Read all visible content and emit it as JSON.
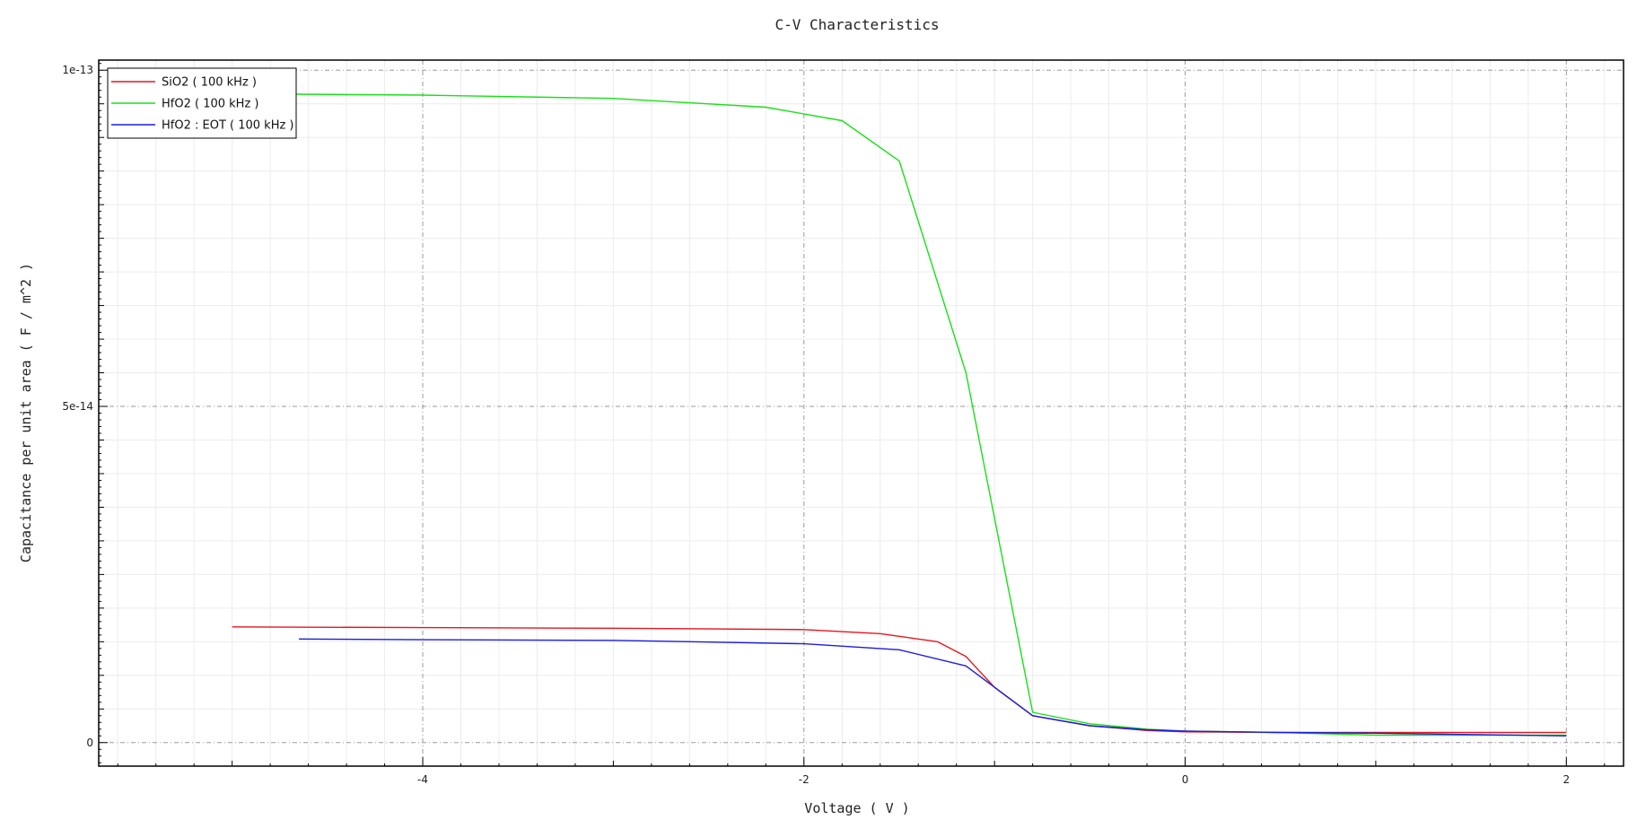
{
  "chart_data": {
    "type": "line",
    "title": "C-V Characteristics",
    "xlabel": "Voltage ( V )",
    "ylabel": "Capacitance per unit area  ( F / m^2 )",
    "xlim": [
      -5.7,
      2.3
    ],
    "ylim": [
      -3.5e-15,
      1.015e-13
    ],
    "x_ticks": [
      {
        "value": -4,
        "label": "-4"
      },
      {
        "value": -2,
        "label": "-2"
      },
      {
        "value": 0,
        "label": "0"
      },
      {
        "value": 2,
        "label": "2"
      }
    ],
    "y_ticks": [
      {
        "value": 0,
        "label": "0"
      },
      {
        "value": 5e-14,
        "label": "5e-14"
      },
      {
        "value": 1e-13,
        "label": "1e-13"
      }
    ],
    "grid": true,
    "legend_position": "top-left",
    "series": [
      {
        "name": "SiO2 ( 100 kHz )",
        "color": "#e8141e",
        "x": [
          -5.0,
          -4.0,
          -3.0,
          -2.0,
          -1.6,
          -1.3,
          -1.15,
          -1.0,
          -0.8,
          -0.5,
          -0.2,
          0.0,
          0.5,
          1.0,
          1.5,
          2.0
        ],
        "y": [
          1.72e-14,
          1.71e-14,
          1.7e-14,
          1.68e-14,
          1.62e-14,
          1.5e-14,
          1.28e-14,
          8.2e-15,
          4e-15,
          2.5e-15,
          1.8e-15,
          1.6e-15,
          1.5e-15,
          1.5e-15,
          1.5e-15,
          1.5e-15
        ]
      },
      {
        "name": "HfO2 ( 100 kHz )",
        "color": "#18e018",
        "x": [
          -5.0,
          -4.0,
          -3.0,
          -2.2,
          -1.8,
          -1.5,
          -1.15,
          -0.8,
          -0.5,
          -0.2,
          0.0,
          0.5,
          1.0,
          1.5,
          2.0
        ],
        "y": [
          9.65e-14,
          9.63e-14,
          9.58e-14,
          9.45e-14,
          9.25e-14,
          8.65e-14,
          5.5e-14,
          4.5e-15,
          2.8e-15,
          2e-15,
          1.7e-15,
          1.5e-15,
          1.1e-15,
          1.1e-15,
          1.1e-15
        ]
      },
      {
        "name": "HfO2 : EOT ( 100 kHz )",
        "color": "#1c1ce0",
        "x": [
          -4.65,
          -4.0,
          -3.0,
          -2.0,
          -1.5,
          -1.15,
          -0.8,
          -0.5,
          -0.2,
          0.0,
          0.5,
          1.0,
          1.5,
          2.0
        ],
        "y": [
          1.54e-14,
          1.53e-14,
          1.52e-14,
          1.47e-14,
          1.38e-14,
          1.14e-14,
          4e-15,
          2.5e-15,
          1.9e-15,
          1.7e-15,
          1.5e-15,
          1.4e-15,
          1.2e-15,
          1e-15
        ]
      }
    ]
  }
}
